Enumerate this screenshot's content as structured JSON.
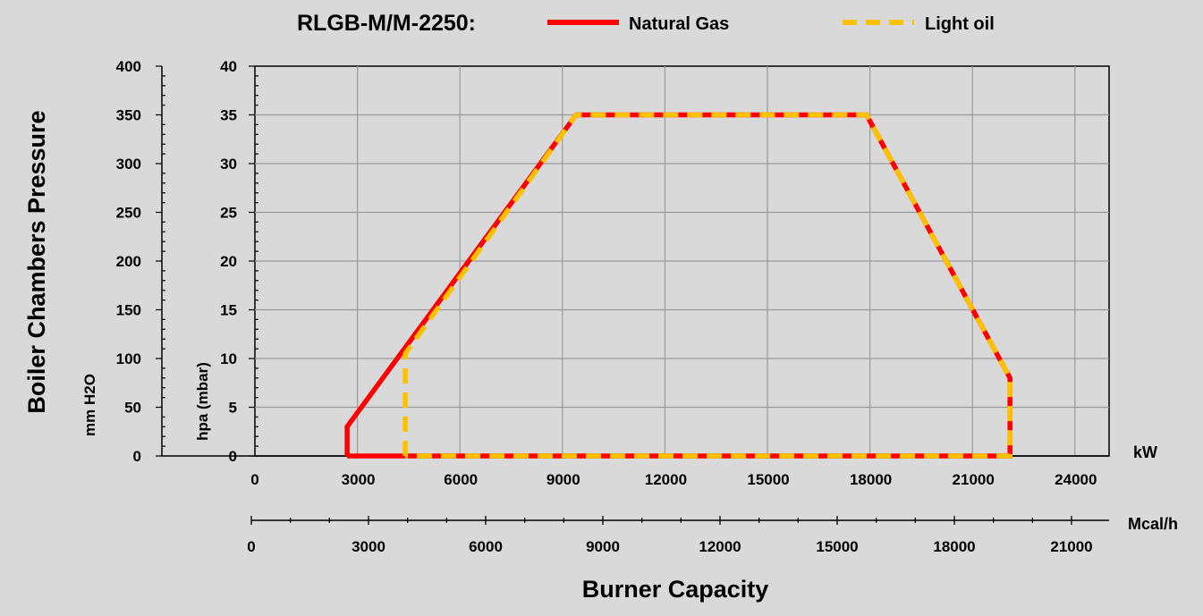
{
  "chart_data": {
    "type": "line",
    "title": "RLGB-M/M-2250:",
    "legend": {
      "placement": "top"
    },
    "xlabel": "Burner Capacity",
    "ylabel": "Boiler Chambers Pressure",
    "x_unit_kw": "kW",
    "x_unit_mcal": "Mcal/h",
    "y_unit_mmh2o": "mm H2O",
    "y_unit_hpa": "hpa (mbar)",
    "xlim": [
      0,
      25000
    ],
    "ylim_hpa": [
      0,
      40
    ],
    "ylim_mmh2o": [
      0,
      400
    ],
    "grid": true,
    "x_ticks_kw": [
      "0",
      "3000",
      "6000",
      "9000",
      "12000",
      "15000",
      "18000",
      "21000",
      "24000"
    ],
    "x_ticks_mcal": [
      "0",
      "3000",
      "6000",
      "9000",
      "12000",
      "15000",
      "18000",
      "21000"
    ],
    "y_ticks_hpa": [
      "0",
      "5",
      "10",
      "15",
      "20",
      "25",
      "30",
      "35",
      "40"
    ],
    "y_ticks_mmh2o": [
      "0",
      "50",
      "100",
      "150",
      "200",
      "250",
      "300",
      "350",
      "400"
    ],
    "series": [
      {
        "name": "Natural Gas",
        "color": "#ff0000",
        "style": "solid",
        "x": [
          2700,
          2700,
          9400,
          17900,
          22100,
          22100,
          2700
        ],
        "y": [
          0,
          3,
          35,
          35,
          8,
          0,
          0
        ]
      },
      {
        "name": "Light oil",
        "color": "#ffc000",
        "style": "dashed",
        "x": [
          4400,
          4400,
          9400,
          17900,
          22100,
          22100,
          4400
        ],
        "y": [
          0,
          10.5,
          35,
          35,
          8,
          0,
          0
        ]
      }
    ]
  }
}
